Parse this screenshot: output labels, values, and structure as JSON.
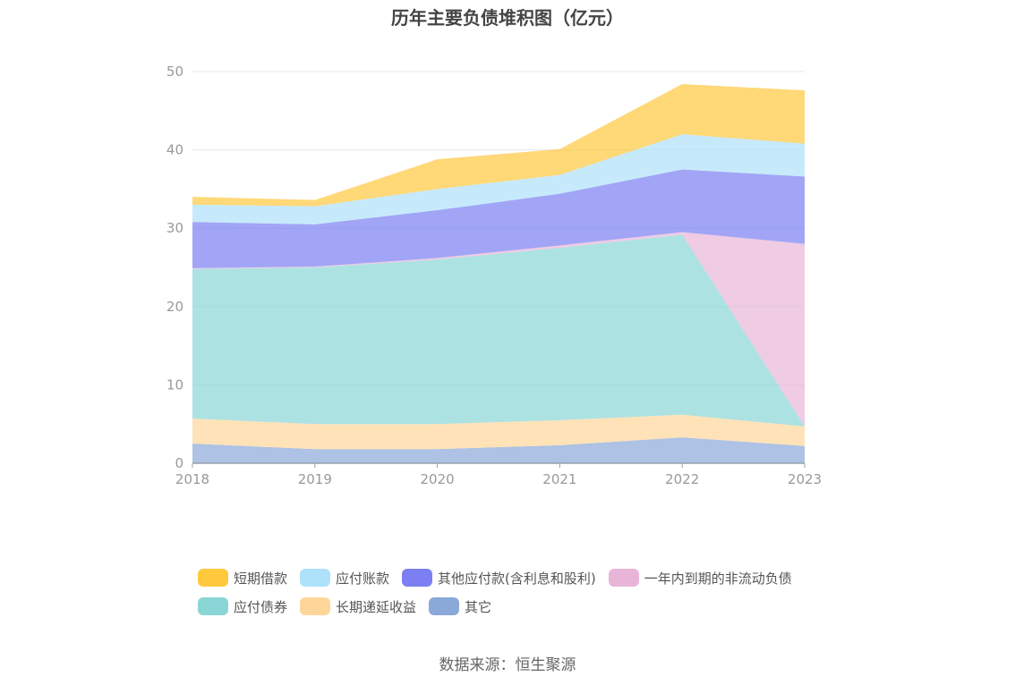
{
  "chart_data": {
    "type": "area",
    "stacked": true,
    "title": "历年主要负债堆积图（亿元）",
    "x": [
      "2018",
      "2019",
      "2020",
      "2021",
      "2022",
      "2023"
    ],
    "ylim": [
      0,
      50
    ],
    "yticks": [
      0,
      10,
      20,
      30,
      40,
      50
    ],
    "grid": true,
    "legend_position": "bottom",
    "series": [
      {
        "name": "其它",
        "color": "#8aa8d8",
        "values": [
          2.5,
          1.8,
          1.8,
          2.3,
          3.3,
          2.2
        ]
      },
      {
        "name": "长期递延收益",
        "color": "#ffd699",
        "values": [
          3.2,
          3.2,
          3.2,
          3.2,
          2.9,
          2.5
        ]
      },
      {
        "name": "应付债券",
        "color": "#8ad6d6",
        "values": [
          19.1,
          20.0,
          21.0,
          22.0,
          23.0,
          0.0
        ]
      },
      {
        "name": "一年内到期的非流动负债",
        "color": "#e8b5d8",
        "values": [
          0.1,
          0.1,
          0.2,
          0.3,
          0.3,
          23.3
        ]
      },
      {
        "name": "其他应付款(含利息和股利)",
        "color": "#7b7ff2",
        "values": [
          5.9,
          5.4,
          6.1,
          6.6,
          8.0,
          8.6
        ]
      },
      {
        "name": "应付账款",
        "color": "#aee1fa",
        "values": [
          2.2,
          2.3,
          2.7,
          2.4,
          4.5,
          4.2
        ]
      },
      {
        "name": "短期借款",
        "color": "#ffc83d",
        "values": [
          1.0,
          0.8,
          3.8,
          3.3,
          6.4,
          6.8
        ]
      }
    ],
    "legend_order": [
      "短期借款",
      "应付账款",
      "其他应付款(含利息和股利)",
      "一年内到期的非流动负债",
      "应付债券",
      "长期递延收益",
      "其它"
    ]
  },
  "source_note": "数据来源：恒生聚源"
}
